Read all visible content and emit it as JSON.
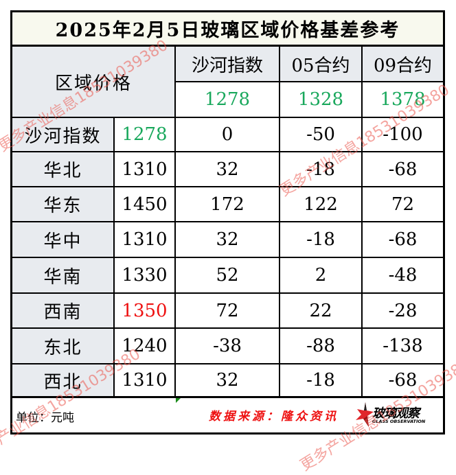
{
  "title": "2025年2月5日玻璃区域价格基差参考",
  "header": {
    "region_price_label": "区域价格",
    "columns": [
      {
        "label": "沙河指数",
        "value": "1278"
      },
      {
        "label": "05合约",
        "value": "1328"
      },
      {
        "label": "09合约",
        "value": "1378"
      }
    ]
  },
  "rows": [
    {
      "region": "沙河指数",
      "price": "1278",
      "shahe": "0",
      "c05": "-50",
      "c09": "-100",
      "price_color": "green"
    },
    {
      "region": "华北",
      "price": "1310",
      "shahe": "32",
      "c05": "-18",
      "c09": "-68"
    },
    {
      "region": "华东",
      "price": "1450",
      "shahe": "172",
      "c05": "122",
      "c09": "72"
    },
    {
      "region": "华中",
      "price": "1310",
      "shahe": "32",
      "c05": "-18",
      "c09": "-68"
    },
    {
      "region": "华南",
      "price": "1330",
      "shahe": "52",
      "c05": "2",
      "c09": "-48"
    },
    {
      "region": "西南",
      "price": "1350",
      "shahe": "72",
      "c05": "22",
      "c09": "-28",
      "price_color": "red"
    },
    {
      "region": "东北",
      "price": "1240",
      "shahe": "-38",
      "c05": "-88",
      "c09": "-138"
    },
    {
      "region": "西北",
      "price": "1310",
      "shahe": "32",
      "c05": "-18",
      "c09": "-68"
    }
  ],
  "footer": {
    "unit": "单位：元吨",
    "source": "数据来源：隆众资讯",
    "logo_text": "玻璃观察",
    "logo_sub": "GLASS OBSERVATION"
  },
  "watermark": "更多产业信息18531039380",
  "colors": {
    "green": "#19a85c",
    "red": "#ee1111",
    "header_bg": "#e8ebef",
    "title_bg": "#f8f9ee",
    "watermark": "#eb5a50"
  }
}
